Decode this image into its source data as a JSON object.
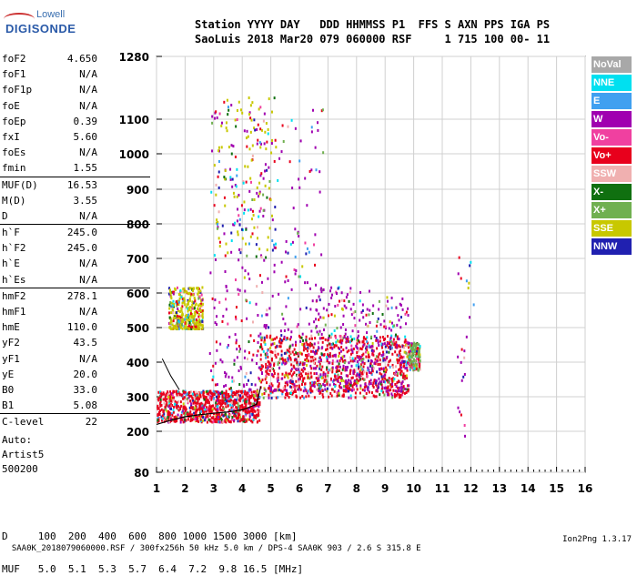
{
  "logo": {
    "brand_top": "Lowell",
    "brand_bottom": "DIGISONDE"
  },
  "header": {
    "line1": "Station YYYY DAY   DDD HHMMSS P1  FFS S AXN PPS IGA PS",
    "line2": "SaoLuis 2018 Mar20 079 060000 RSF     1 715 100 00- 11"
  },
  "params": [
    {
      "name": "foF2",
      "value": "4.650"
    },
    {
      "name": "foF1",
      "value": "N/A"
    },
    {
      "name": "foF1p",
      "value": "N/A"
    },
    {
      "name": "foE",
      "value": "N/A"
    },
    {
      "name": "foEp",
      "value": "0.39"
    },
    {
      "name": "fxI",
      "value": "5.60"
    },
    {
      "name": "foEs",
      "value": "N/A"
    },
    {
      "name": "fmin",
      "value": "1.55"
    },
    {
      "name": "MUF(D)",
      "value": "16.53"
    },
    {
      "name": "M(D)",
      "value": "3.55"
    },
    {
      "name": "D",
      "value": "N/A"
    },
    {
      "name": "h`F",
      "value": "245.0"
    },
    {
      "name": "h`F2",
      "value": "245.0"
    },
    {
      "name": "h`E",
      "value": "N/A"
    },
    {
      "name": "h`Es",
      "value": "N/A"
    },
    {
      "name": "hmF2",
      "value": "278.1"
    },
    {
      "name": "hmF1",
      "value": "N/A"
    },
    {
      "name": "hmE",
      "value": "110.0"
    },
    {
      "name": "yF2",
      "value": "43.5"
    },
    {
      "name": "yF1",
      "value": "N/A"
    },
    {
      "name": "yE",
      "value": "20.0"
    },
    {
      "name": "B0",
      "value": "33.0"
    },
    {
      "name": "B1",
      "value": "5.08"
    },
    {
      "name": "C-level",
      "value": "22"
    }
  ],
  "auto": {
    "line1": "Auto:",
    "line2": "Artist5",
    "line3": "500200"
  },
  "muf_table": {
    "d_row": "D     100  200  400  600  800 1000 1500 3000 [km]",
    "muf_row": "MUF   5.0  5.1  5.3  5.7  6.4  7.2  9.8 16.5 [MHz]"
  },
  "footer": {
    "left": "SAA0K_2018079060000.RSF / 300fx256h 50 kHz 5.0 km / DPS-4 SAA0K 903 / 2.6 S 315.8 E",
    "right": "Ion2Png 1.3.17"
  },
  "legend": [
    {
      "label": "NoVal",
      "color": "#a8a8a8"
    },
    {
      "label": "NNE",
      "color": "#00e0f0"
    },
    {
      "label": "E",
      "color": "#40a0f0"
    },
    {
      "label": "W",
      "color": "#a000b0"
    },
    {
      "label": "Vo-",
      "color": "#f040a0"
    },
    {
      "label": "Vo+",
      "color": "#e8001c"
    },
    {
      "label": "SSW",
      "color": "#f0b0b0"
    },
    {
      "label": "X-",
      "color": "#107010"
    },
    {
      "label": "X+",
      "color": "#70b050"
    },
    {
      "label": "SSE",
      "color": "#c8c800"
    },
    {
      "label": "NNW",
      "color": "#2020b0"
    }
  ],
  "chart_data": {
    "type": "scatter",
    "x_ticks": [
      "1",
      "2",
      "3",
      "4",
      "5",
      "6",
      "7",
      "8",
      "9",
      "10",
      "11",
      "12",
      "13",
      "14",
      "15",
      "16"
    ],
    "y_ticks": [
      "80",
      "200",
      "300",
      "400",
      "500",
      "600",
      "700",
      "800",
      "900",
      "1000",
      "1100",
      "1280"
    ],
    "xlim": [
      1,
      16
    ],
    "ylim_label": [
      80,
      1280
    ],
    "y_scale": "nonlinear (compressed low heights)",
    "grid": true,
    "profile_curve": {
      "x": [
        1.0,
        1.5,
        2.0,
        2.5,
        3.0,
        3.5,
        4.0,
        4.5,
        4.65
      ],
      "y": [
        220,
        232,
        242,
        248,
        252,
        256,
        262,
        278,
        330
      ]
    },
    "profile_rising_branch": {
      "x": [
        1.2,
        1.5,
        1.8
      ],
      "y": [
        410,
        360,
        320
      ]
    },
    "echo_clusters": [
      {
        "x_range": [
          1.0,
          4.6
        ],
        "y_range": [
          230,
          320
        ],
        "dominant": "Vo+",
        "density": "high"
      },
      {
        "x_range": [
          4.6,
          9.8
        ],
        "y_range": [
          300,
          480
        ],
        "dominant": "Vo+",
        "density": "high"
      },
      {
        "x_range": [
          2.8,
          6.8
        ],
        "y_range": [
          320,
          1150
        ],
        "dominant": "W",
        "density": "medium"
      },
      {
        "x_range": [
          1.4,
          2.6
        ],
        "y_range": [
          500,
          620
        ],
        "dominant": "SSE",
        "density": "medium"
      },
      {
        "x_range": [
          3.0,
          5.2
        ],
        "y_range": [
          700,
          1180
        ],
        "dominant": "SSE",
        "density": "low"
      },
      {
        "x_range": [
          6.5,
          9.8
        ],
        "y_range": [
          320,
          620
        ],
        "dominant": "W",
        "density": "medium"
      },
      {
        "x_range": [
          9.8,
          10.2
        ],
        "y_range": [
          380,
          460
        ],
        "dominant": "X+",
        "density": "low"
      },
      {
        "x_range": [
          11.5,
          12.1
        ],
        "y_range": [
          180,
          720
        ],
        "dominant": "W",
        "density": "sparse"
      }
    ]
  }
}
